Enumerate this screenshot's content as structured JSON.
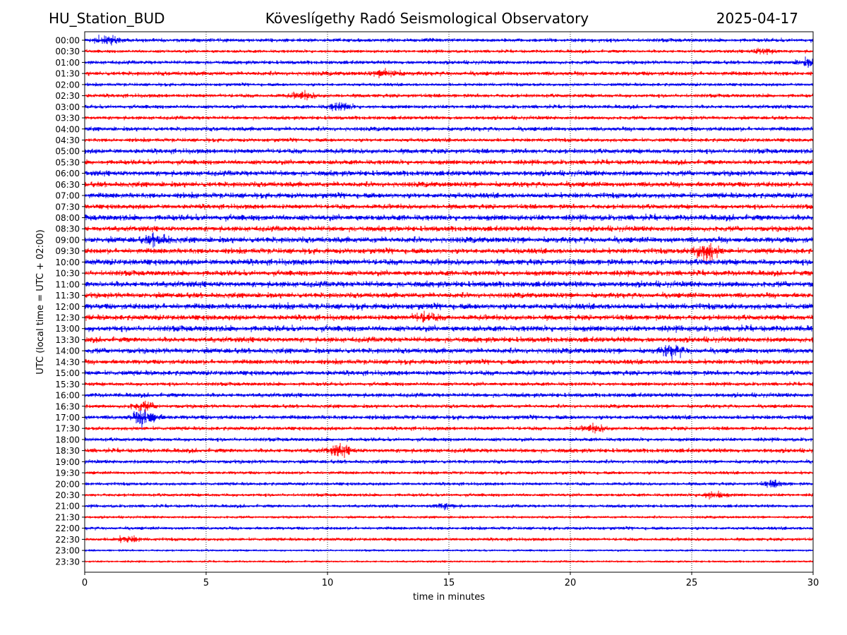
{
  "header": {
    "station": "HU_Station_BUD",
    "observatory": "Köveslígethy Radó Seismological Observatory",
    "date": "2025-04-17"
  },
  "chart_data": {
    "type": "line",
    "xlabel": "time in minutes",
    "ylabel": "UTC (local time = UTC + 02:00)",
    "xlim": [
      0,
      30
    ],
    "xticks": [
      0,
      5,
      10,
      15,
      20,
      25,
      30
    ],
    "grid": "vertical dotted lines at x ticks",
    "row_labels": [
      "00:00",
      "00:30",
      "01:00",
      "01:30",
      "02:00",
      "02:30",
      "03:00",
      "03:30",
      "04:00",
      "04:30",
      "05:00",
      "05:30",
      "06:00",
      "06:30",
      "07:00",
      "07:30",
      "08:00",
      "08:30",
      "09:00",
      "09:30",
      "10:00",
      "10:30",
      "11:00",
      "11:30",
      "12:00",
      "12:30",
      "13:00",
      "13:30",
      "14:00",
      "14:30",
      "15:00",
      "15:30",
      "16:00",
      "16:30",
      "17:00",
      "17:30",
      "18:00",
      "18:30",
      "19:00",
      "19:30",
      "20:00",
      "20:30",
      "21:00",
      "21:30",
      "22:00",
      "22:30",
      "23:00",
      "23:30"
    ],
    "colors": [
      "#0000ee",
      "#ff0000"
    ],
    "trace_amplitude": [
      0.6,
      0.5,
      0.6,
      0.7,
      0.5,
      0.6,
      0.6,
      0.6,
      0.7,
      0.6,
      0.8,
      0.8,
      0.9,
      0.9,
      0.9,
      0.8,
      1.0,
      0.9,
      1.0,
      0.9,
      1.0,
      0.9,
      1.0,
      0.9,
      1.0,
      0.9,
      1.0,
      0.9,
      0.9,
      0.8,
      0.8,
      0.6,
      0.7,
      0.6,
      0.7,
      0.6,
      0.6,
      0.7,
      0.6,
      0.5,
      0.5,
      0.5,
      0.5,
      0.4,
      0.5,
      0.5,
      0.3,
      0.3
    ],
    "events": [
      {
        "row": "00:00",
        "minute": 0.9,
        "strength": 2.5
      },
      {
        "row": "00:30",
        "minute": 28.0,
        "strength": 2.2
      },
      {
        "row": "01:00",
        "minute": 29.8,
        "strength": 2.0
      },
      {
        "row": "01:30",
        "minute": 12.5,
        "strength": 2.0
      },
      {
        "row": "02:30",
        "minute": 9.0,
        "strength": 1.8
      },
      {
        "row": "03:00",
        "minute": 10.5,
        "strength": 2.2
      },
      {
        "row": "09:00",
        "minute": 3.0,
        "strength": 1.8
      },
      {
        "row": "09:30",
        "minute": 25.6,
        "strength": 4.0
      },
      {
        "row": "12:30",
        "minute": 14.0,
        "strength": 1.6
      },
      {
        "row": "14:00",
        "minute": 24.2,
        "strength": 2.0
      },
      {
        "row": "16:30",
        "minute": 2.4,
        "strength": 2.4
      },
      {
        "row": "17:00",
        "minute": 2.5,
        "strength": 4.5
      },
      {
        "row": "17:30",
        "minute": 21.0,
        "strength": 1.8
      },
      {
        "row": "18:30",
        "minute": 10.5,
        "strength": 2.5
      },
      {
        "row": "20:00",
        "minute": 28.4,
        "strength": 2.0
      },
      {
        "row": "20:30",
        "minute": 25.9,
        "strength": 2.5
      },
      {
        "row": "21:00",
        "minute": 14.8,
        "strength": 1.8
      },
      {
        "row": "22:30",
        "minute": 1.8,
        "strength": 2.0
      }
    ]
  }
}
